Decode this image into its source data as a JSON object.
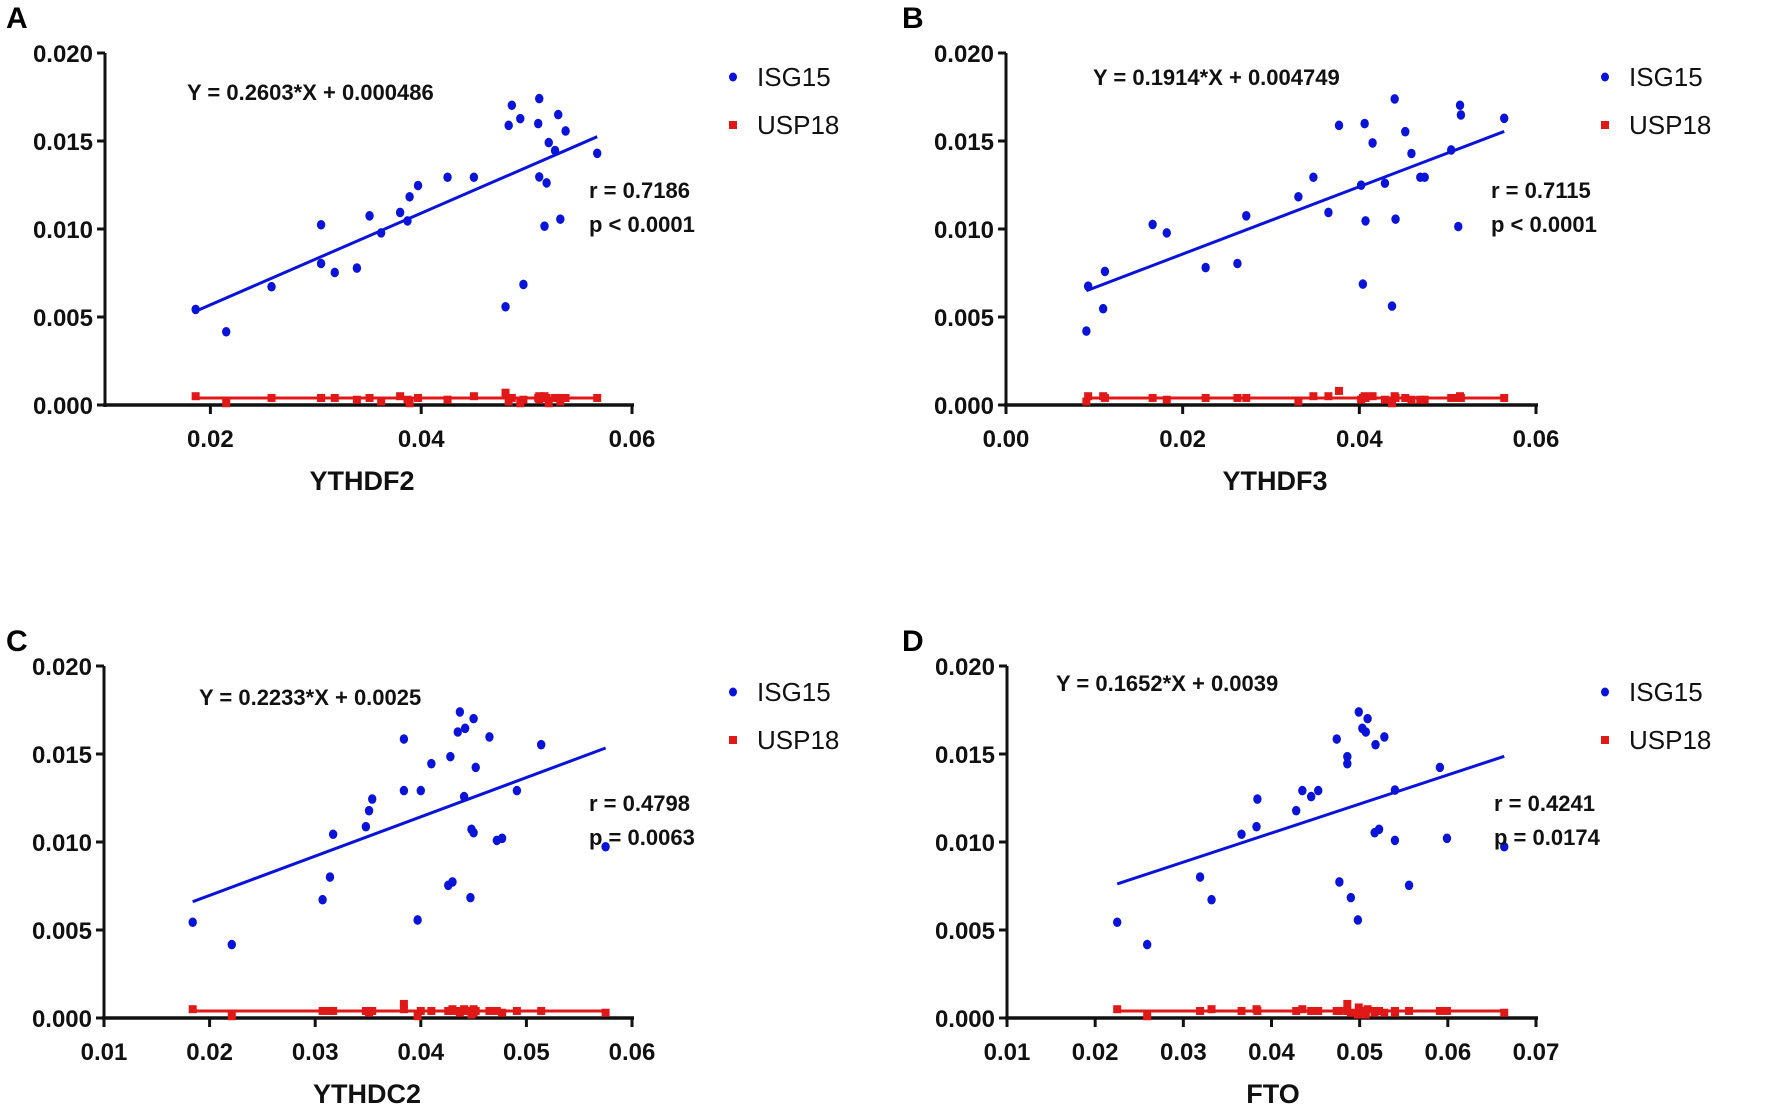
{
  "colors": {
    "isg15": "#0a14d8",
    "usp18": "#e01818",
    "axis": "#111111"
  },
  "chart_data": [
    {
      "panel": "A",
      "type": "scatter",
      "xlabel": "YTHDF2",
      "ylabel": "",
      "xlim": [
        0.01,
        0.06
      ],
      "xticks": [
        "0.02",
        "0.04",
        "0.06"
      ],
      "xtick_values": [
        0.02,
        0.04,
        0.06
      ],
      "ylim": [
        0,
        0.02
      ],
      "yticks": [
        "0.000",
        "0.005",
        "0.010",
        "0.015",
        "0.020"
      ],
      "ytick_values": [
        0,
        0.005,
        0.01,
        0.015,
        0.02
      ],
      "equation": "Y = 0.2603*X + 0.000486",
      "slope": 0.2603,
      "intercept": 0.000486,
      "r_text": "r = 0.7186",
      "p_text": "p < 0.0001",
      "legend": [
        "ISG15",
        "USP18"
      ],
      "legend_position": "top-right",
      "x": [
        0.0186,
        0.0215,
        0.0258,
        0.0305,
        0.0305,
        0.0318,
        0.0339,
        0.0351,
        0.0362,
        0.038,
        0.0387,
        0.0389,
        0.0397,
        0.0425,
        0.045,
        0.048,
        0.0483,
        0.0486,
        0.0494,
        0.0497,
        0.0511,
        0.0512,
        0.0512,
        0.0517,
        0.0519,
        0.0521,
        0.0527,
        0.053,
        0.0532,
        0.0537,
        0.0567
      ],
      "series": [
        {
          "name": "ISG15",
          "values": [
            0.00543,
            0.00416,
            0.00672,
            0.01024,
            0.00804,
            0.00753,
            0.00778,
            0.01075,
            0.00978,
            0.01094,
            0.01046,
            0.01183,
            0.01247,
            0.01294,
            0.01294,
            0.00558,
            0.01589,
            0.01703,
            0.01627,
            0.00685,
            0.01599,
            0.01741,
            0.01296,
            0.01016,
            0.01262,
            0.01491,
            0.01446,
            0.0165,
            0.01056,
            0.01557,
            0.0143
          ]
        },
        {
          "name": "USP18",
          "values": [
            0.0005,
            0.0001,
            0.0004,
            0.0004,
            0.0004,
            0.0004,
            0.0003,
            0.0004,
            0.0002,
            0.0005,
            0.0003,
            0.0001,
            0.0004,
            0.0003,
            0.0005,
            0.0007,
            0.0002,
            0.0004,
            0.0001,
            0.0003,
            0.0004,
            0.0005,
            0.0003,
            0.0005,
            0.0004,
            0.0001,
            0.0004,
            0.0004,
            0.0002,
            0.0004,
            0.0004
          ],
          "fit_value": 0.0004
        }
      ]
    },
    {
      "panel": "B",
      "type": "scatter",
      "xlabel": "YTHDF3",
      "ylabel": "",
      "xlim": [
        0.0,
        0.06
      ],
      "xticks": [
        "0.00",
        "0.02",
        "0.04",
        "0.06"
      ],
      "xtick_values": [
        0,
        0.02,
        0.04,
        0.06
      ],
      "ylim": [
        0,
        0.02
      ],
      "yticks": [
        "0.000",
        "0.005",
        "0.010",
        "0.015",
        "0.020"
      ],
      "ytick_values": [
        0,
        0.005,
        0.01,
        0.015,
        0.02
      ],
      "equation": "Y = 0.1914*X + 0.004749",
      "slope": 0.1914,
      "intercept": 0.004749,
      "r_text": "r = 0.7115",
      "p_text": "p < 0.0001",
      "legend": [
        "ISG15",
        "USP18"
      ],
      "legend_position": "top-right",
      "x": [
        0.0091,
        0.0093,
        0.0112,
        0.011,
        0.0166,
        0.0182,
        0.0226,
        0.0262,
        0.0272,
        0.0331,
        0.0348,
        0.0365,
        0.0377,
        0.0402,
        0.0404,
        0.0406,
        0.0407,
        0.0415,
        0.0429,
        0.0437,
        0.044,
        0.0441,
        0.0452,
        0.0459,
        0.0469,
        0.0474,
        0.0504,
        0.0512,
        0.0514,
        0.0515,
        0.0564
      ],
      "series": [
        {
          "name": "ISG15",
          "values": [
            0.0042,
            0.00675,
            0.00759,
            0.00547,
            0.01026,
            0.00978,
            0.00781,
            0.00804,
            0.01075,
            0.01183,
            0.01294,
            0.01094,
            0.01589,
            0.01249,
            0.00687,
            0.01599,
            0.01046,
            0.01489,
            0.0126,
            0.00562,
            0.01739,
            0.01056,
            0.01553,
            0.01429,
            0.01294,
            0.01294,
            0.01449,
            0.01014,
            0.01703,
            0.01648,
            0.01629
          ]
        },
        {
          "name": "USP18",
          "values": [
            0.0002,
            0.0005,
            0.0004,
            0.0005,
            0.0004,
            0.0003,
            0.0004,
            0.0004,
            0.0004,
            0.0002,
            0.0005,
            0.0005,
            0.0008,
            0.0003,
            0.0004,
            0.0005,
            0.0004,
            0.0005,
            0.0003,
            0.0001,
            0.0005,
            0.0004,
            0.0004,
            0.0003,
            0.0003,
            0.0003,
            0.0004,
            0.0004,
            0.0005,
            0.0004,
            0.0004
          ],
          "fit_value": 0.0004
        }
      ]
    },
    {
      "panel": "C",
      "type": "scatter",
      "xlabel": "YTHDC2",
      "ylabel": "",
      "xlim": [
        0.01,
        0.06
      ],
      "xticks": [
        "0.01",
        "0.02",
        "0.03",
        "0.04",
        "0.05",
        "0.06"
      ],
      "xtick_values": [
        0.01,
        0.02,
        0.03,
        0.04,
        0.05,
        0.06
      ],
      "ylim": [
        0,
        0.02
      ],
      "yticks": [
        "0.000",
        "0.005",
        "0.010",
        "0.015",
        "0.020"
      ],
      "ytick_values": [
        0,
        0.005,
        0.01,
        0.015,
        0.02
      ],
      "equation": "Y = 0.2233*X + 0.0025",
      "slope": 0.2233,
      "intercept": 0.0025,
      "r_text": "r = 0.4798",
      "p_text": "p = 0.0063",
      "legend": [
        "ISG15",
        "USP18"
      ],
      "legend_position": "top-right",
      "x": [
        0.0184,
        0.0221,
        0.0307,
        0.0314,
        0.0317,
        0.0348,
        0.0351,
        0.0354,
        0.0384,
        0.0384,
        0.0397,
        0.04,
        0.041,
        0.0426,
        0.0428,
        0.043,
        0.0435,
        0.0437,
        0.0441,
        0.0442,
        0.0447,
        0.0448,
        0.045,
        0.045,
        0.0452,
        0.0465,
        0.0472,
        0.0477,
        0.0491,
        0.0514,
        0.0575
      ],
      "series": [
        {
          "name": "ISG15",
          "values": [
            0.00544,
            0.00417,
            0.00672,
            0.00801,
            0.01044,
            0.01087,
            0.01178,
            0.01244,
            0.01292,
            0.01585,
            0.00557,
            0.01292,
            0.01445,
            0.00754,
            0.01485,
            0.00773,
            0.01625,
            0.01739,
            0.01258,
            0.01646,
            0.00684,
            0.01072,
            0.01701,
            0.01053,
            0.01424,
            0.01597,
            0.01009,
            0.01021,
            0.01292,
            0.01553,
            0.00973
          ]
        },
        {
          "name": "USP18",
          "values": [
            0.0005,
            0.0001,
            0.0004,
            0.0004,
            0.0004,
            0.0004,
            0.0003,
            0.0004,
            0.0008,
            0.0005,
            0.0001,
            0.0004,
            0.0004,
            0.0004,
            0.0004,
            0.0005,
            0.0004,
            0.0003,
            0.0005,
            0.0004,
            0.0004,
            0.0002,
            0.0005,
            0.0003,
            0.0004,
            0.0004,
            0.0004,
            0.0003,
            0.0004,
            0.0004,
            0.0003
          ],
          "fit_value": 0.0004
        }
      ]
    },
    {
      "panel": "D",
      "type": "scatter",
      "xlabel": "FTO",
      "ylabel": "",
      "xlim": [
        0.01,
        0.07
      ],
      "xticks": [
        "0.01",
        "0.02",
        "0.03",
        "0.04",
        "0.05",
        "0.06",
        "0.07"
      ],
      "xtick_values": [
        0.01,
        0.02,
        0.03,
        0.04,
        0.05,
        0.06,
        0.07
      ],
      "ylim": [
        0,
        0.02
      ],
      "yticks": [
        "0.000",
        "0.005",
        "0.010",
        "0.015",
        "0.020"
      ],
      "ytick_values": [
        0,
        0.005,
        0.01,
        0.015,
        0.02
      ],
      "equation": "Y = 0.1652*X + 0.0039",
      "slope": 0.1652,
      "intercept": 0.0039,
      "r_text": "r = 0.4241",
      "p_text": "p = 0.0174",
      "legend": [
        "ISG15",
        "USP18"
      ],
      "legend_position": "top-right",
      "x": [
        0.0225,
        0.0259,
        0.0319,
        0.0332,
        0.0366,
        0.0383,
        0.0384,
        0.0428,
        0.0435,
        0.0445,
        0.0453,
        0.0474,
        0.0477,
        0.0486,
        0.0486,
        0.049,
        0.0498,
        0.0499,
        0.0503,
        0.0507,
        0.0509,
        0.0517,
        0.0518,
        0.0522,
        0.0528,
        0.054,
        0.054,
        0.0556,
        0.0591,
        0.0599,
        0.0664
      ],
      "series": [
        {
          "name": "ISG15",
          "values": [
            0.00544,
            0.00417,
            0.00801,
            0.00672,
            0.01044,
            0.01087,
            0.01244,
            0.01178,
            0.01292,
            0.01258,
            0.01292,
            0.01585,
            0.00773,
            0.01485,
            0.01445,
            0.00684,
            0.00557,
            0.01739,
            0.01646,
            0.01625,
            0.01701,
            0.01053,
            0.01553,
            0.01072,
            0.01597,
            0.01295,
            0.01009,
            0.00754,
            0.01424,
            0.01021,
            0.00973
          ]
        },
        {
          "name": "USP18",
          "values": [
            0.0005,
            0.0001,
            0.0004,
            0.0005,
            0.0004,
            0.0005,
            0.0004,
            0.0004,
            0.0005,
            0.0004,
            0.0004,
            0.0004,
            0.0004,
            0.0008,
            0.0004,
            0.0003,
            0.0002,
            0.0006,
            0.0004,
            0.0002,
            0.0005,
            0.0003,
            0.0004,
            0.0004,
            0.0003,
            0.0003,
            0.0004,
            0.0004,
            0.0004,
            0.0004,
            0.0003
          ],
          "fit_value": 0.0004
        }
      ]
    }
  ]
}
